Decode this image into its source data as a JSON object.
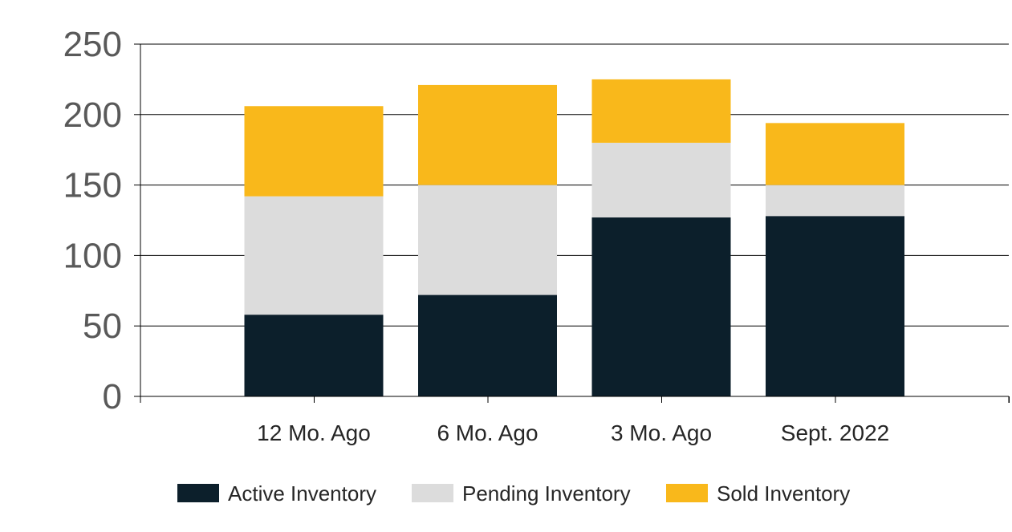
{
  "chart_data": {
    "type": "bar",
    "stacked": true,
    "categories": [
      "12 Mo. Ago",
      "6 Mo. Ago",
      "3 Mo. Ago",
      "Sept. 2022"
    ],
    "series": [
      {
        "name": "Active Inventory",
        "color": "#0c1f2b",
        "values": [
          58,
          72,
          127,
          128
        ]
      },
      {
        "name": "Pending Inventory",
        "color": "#dcdcdc",
        "values": [
          84,
          78,
          53,
          22
        ]
      },
      {
        "name": "Sold Inventory",
        "color": "#f9b81b",
        "values": [
          64,
          71,
          45,
          44
        ]
      }
    ],
    "ylim": [
      0,
      250
    ],
    "yticks": [
      0,
      50,
      100,
      150,
      200,
      250
    ],
    "grid": true,
    "legend": "bottom"
  }
}
